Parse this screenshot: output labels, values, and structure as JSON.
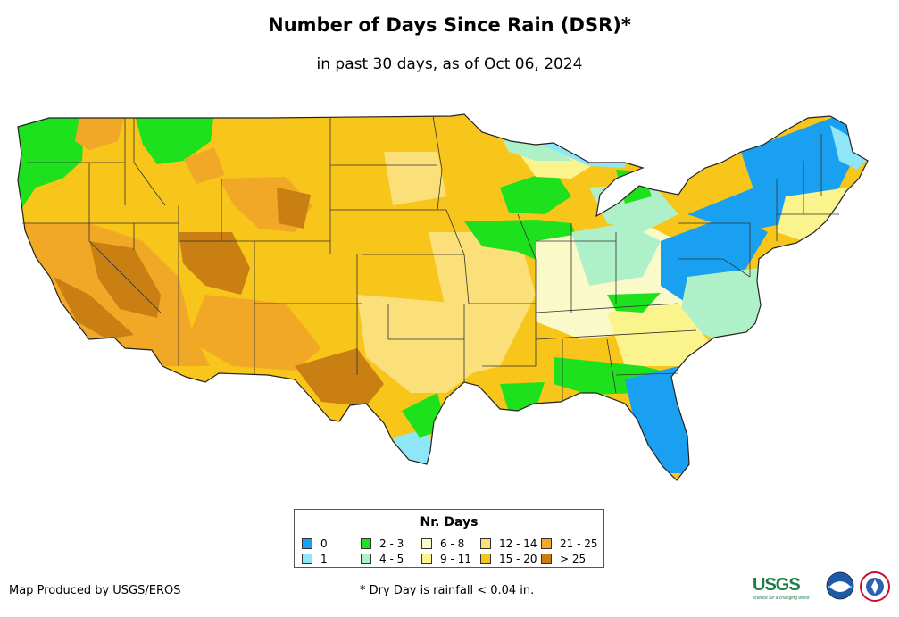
{
  "title": "Number of Days Since Rain (DSR)*",
  "subtitle": "in past 30 days, as of Oct 06, 2024",
  "legend": {
    "title": "Nr. Days",
    "items": [
      {
        "label": "0",
        "color": "#1aa0f0"
      },
      {
        "label": "1",
        "color": "#8ee6f7"
      },
      {
        "label": "2 - 3",
        "color": "#1ee11e"
      },
      {
        "label": "4 - 5",
        "color": "#aef0c8"
      },
      {
        "label": "6 - 8",
        "color": "#fafac8"
      },
      {
        "label": "9 - 11",
        "color": "#fbf38c"
      },
      {
        "label": "12 - 14",
        "color": "#fbe07a"
      },
      {
        "label": "15 - 20",
        "color": "#f8c51a"
      },
      {
        "label": "21 - 25",
        "color": "#f1a826"
      },
      {
        "label": "> 25",
        "color": "#c97f12"
      }
    ]
  },
  "credit": "Map Produced by USGS/EROS",
  "footnote": "* Dry Day is rainfall < 0.04 in.",
  "logos": {
    "usgs": "USGS",
    "usgs_tagline": "science for a changing world"
  }
}
